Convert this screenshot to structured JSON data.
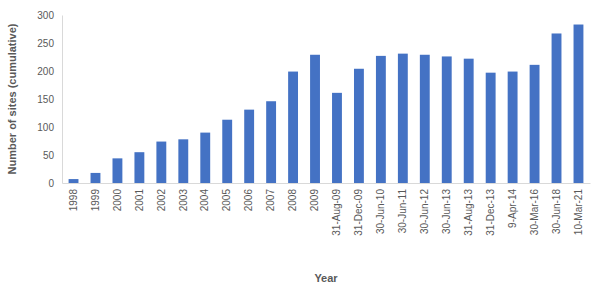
{
  "chart_data": {
    "type": "bar",
    "x_label": "Year",
    "y_label": "Number of sites (cumulative)",
    "categories": [
      "1998",
      "1999",
      "2000",
      "2001",
      "2002",
      "2003",
      "2004",
      "2005",
      "2006",
      "2007",
      "2008",
      "2009",
      "31-Aug-09",
      "31-Dec-09",
      "30-Jun-10",
      "30-Jun-11",
      "30-Jun-12",
      "30-Jun-13",
      "31-Aug-13",
      "31-Dec-13",
      "9-Apr-14",
      "30-Mar-16",
      "30-Jun-18",
      "10-Mar-21"
    ],
    "values": [
      7,
      18,
      44,
      55,
      74,
      78,
      90,
      113,
      131,
      146,
      199,
      229,
      161,
      204,
      227,
      231,
      229,
      226,
      222,
      197,
      199,
      211,
      267,
      283
    ],
    "color": "#4472c4",
    "ylim": [
      0,
      300
    ],
    "yticks": [
      0,
      50,
      100,
      150,
      200,
      250,
      300
    ],
    "grid": false
  }
}
